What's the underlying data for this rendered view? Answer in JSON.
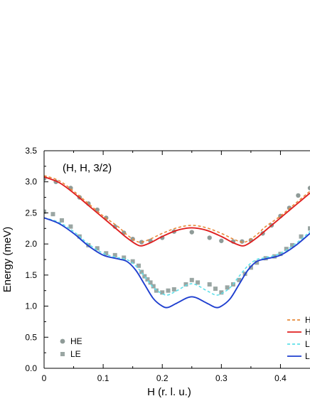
{
  "chart_data": {
    "type": "line",
    "annotation": "(H, H, 3/2)",
    "xlabel": "H (r. l. u.)",
    "ylabel": "Energy (meV)",
    "xlim": [
      0,
      0.45
    ],
    "ylim": [
      0,
      3.5
    ],
    "xticks": [
      0,
      0.1,
      0.2,
      0.3,
      0.4
    ],
    "xtick_labels": [
      "0",
      "0.1",
      "0.2",
      "0.3",
      "0.4"
    ],
    "yticks": [
      0,
      0.5,
      1.0,
      1.5,
      2.0,
      2.5,
      3.0,
      3.5
    ],
    "ytick_labels": [
      "0.0",
      "0.5",
      "1.0",
      "1.5",
      "2.0",
      "2.5",
      "3.0",
      "3.5"
    ],
    "grid": false,
    "colors": {
      "he_points": "#8f9b98",
      "le_points": "#9aa6a3",
      "he_fit_dashed": "#e8893a",
      "he_fit_solid": "#e02020",
      "le_fit_dashed": "#5fe0ea",
      "le_fit_solid": "#1f3fcf"
    },
    "point_legend": [
      {
        "label": "HE",
        "marker": "circle"
      },
      {
        "label": "LE",
        "marker": "square"
      }
    ],
    "line_legend": [
      {
        "label": "H",
        "style": "dashed",
        "color_key": "he_fit_dashed"
      },
      {
        "label": "H",
        "style": "solid",
        "color_key": "he_fit_solid"
      },
      {
        "label": "L",
        "style": "dashed",
        "color_key": "le_fit_dashed"
      },
      {
        "label": "L",
        "style": "solid",
        "color_key": "le_fit_solid"
      }
    ],
    "scatter_series": [
      {
        "name": "HE",
        "marker": "circle",
        "x": [
          0.0,
          0.02,
          0.045,
          0.06,
          0.075,
          0.09,
          0.105,
          0.12,
          0.135,
          0.15,
          0.165,
          0.18,
          0.2,
          0.22,
          0.25,
          0.28,
          0.3,
          0.32,
          0.335,
          0.35,
          0.37,
          0.385,
          0.4,
          0.415,
          0.43,
          0.45
        ],
        "y": [
          3.05,
          3.0,
          2.9,
          2.75,
          2.65,
          2.55,
          2.42,
          2.28,
          2.18,
          2.08,
          2.03,
          2.05,
          2.1,
          2.2,
          2.19,
          2.1,
          2.05,
          2.04,
          2.04,
          2.06,
          2.17,
          2.3,
          2.45,
          2.58,
          2.78,
          2.9
        ]
      },
      {
        "name": "LE",
        "marker": "square",
        "x": [
          0.0,
          0.015,
          0.03,
          0.045,
          0.06,
          0.075,
          0.09,
          0.105,
          0.12,
          0.135,
          0.15,
          0.16,
          0.165,
          0.17,
          0.175,
          0.18,
          0.185,
          0.19,
          0.2,
          0.21,
          0.22,
          0.24,
          0.25,
          0.26,
          0.28,
          0.29,
          0.3,
          0.31,
          0.32,
          0.33,
          0.34,
          0.35,
          0.36,
          0.375,
          0.39,
          0.4,
          0.41,
          0.42,
          0.435,
          0.45
        ],
        "y": [
          2.52,
          2.48,
          2.38,
          2.28,
          2.12,
          1.98,
          1.93,
          1.85,
          1.82,
          1.78,
          1.72,
          1.65,
          1.55,
          1.48,
          1.43,
          1.38,
          1.32,
          1.25,
          1.22,
          1.25,
          1.27,
          1.35,
          1.42,
          1.38,
          1.35,
          1.28,
          1.22,
          1.3,
          1.35,
          1.42,
          1.52,
          1.62,
          1.7,
          1.77,
          1.8,
          1.84,
          1.92,
          1.98,
          2.12,
          2.25
        ]
      }
    ],
    "line_series": [
      {
        "name": "H (dashed)",
        "style": "dashed",
        "color_key": "he_fit_dashed",
        "x": [
          0,
          0.025,
          0.05,
          0.075,
          0.1,
          0.125,
          0.14,
          0.155,
          0.165,
          0.18,
          0.2,
          0.225,
          0.25,
          0.275,
          0.3,
          0.32,
          0.335,
          0.345,
          0.36,
          0.375,
          0.4,
          0.425,
          0.45
        ],
        "y": [
          3.1,
          3.02,
          2.85,
          2.65,
          2.45,
          2.28,
          2.15,
          2.05,
          2.03,
          2.08,
          2.17,
          2.26,
          2.3,
          2.26,
          2.17,
          2.08,
          2.03,
          2.05,
          2.15,
          2.28,
          2.45,
          2.65,
          2.85
        ]
      },
      {
        "name": "H (solid)",
        "style": "solid",
        "color_key": "he_fit_solid",
        "x": [
          0,
          0.025,
          0.05,
          0.075,
          0.1,
          0.125,
          0.14,
          0.155,
          0.165,
          0.18,
          0.2,
          0.225,
          0.25,
          0.275,
          0.3,
          0.32,
          0.335,
          0.345,
          0.36,
          0.375,
          0.4,
          0.425,
          0.45
        ],
        "y": [
          3.08,
          2.99,
          2.82,
          2.62,
          2.42,
          2.22,
          2.1,
          2.0,
          1.97,
          2.02,
          2.12,
          2.22,
          2.26,
          2.22,
          2.12,
          2.02,
          1.97,
          2.0,
          2.1,
          2.22,
          2.42,
          2.62,
          2.82
        ]
      },
      {
        "name": "L (dashed)",
        "style": "dashed",
        "color_key": "le_fit_dashed",
        "x": [
          0,
          0.025,
          0.05,
          0.075,
          0.1,
          0.125,
          0.14,
          0.155,
          0.17,
          0.185,
          0.2,
          0.21,
          0.225,
          0.25,
          0.275,
          0.29,
          0.3,
          0.315,
          0.33,
          0.345,
          0.36,
          0.375,
          0.4,
          0.425,
          0.45
        ],
        "y": [
          2.42,
          2.35,
          2.2,
          2.0,
          1.85,
          1.78,
          1.75,
          1.65,
          1.48,
          1.3,
          1.2,
          1.18,
          1.25,
          1.36,
          1.25,
          1.18,
          1.2,
          1.3,
          1.48,
          1.65,
          1.75,
          1.78,
          1.85,
          2.0,
          2.2
        ]
      },
      {
        "name": "L (solid)",
        "style": "solid",
        "color_key": "le_fit_solid",
        "x": [
          0,
          0.025,
          0.05,
          0.075,
          0.1,
          0.125,
          0.14,
          0.155,
          0.17,
          0.185,
          0.2,
          0.21,
          0.225,
          0.25,
          0.275,
          0.29,
          0.3,
          0.315,
          0.33,
          0.345,
          0.36,
          0.375,
          0.4,
          0.425,
          0.45
        ],
        "y": [
          2.42,
          2.33,
          2.17,
          1.97,
          1.82,
          1.76,
          1.72,
          1.58,
          1.35,
          1.12,
          1.0,
          0.98,
          1.05,
          1.15,
          1.05,
          0.98,
          1.0,
          1.12,
          1.35,
          1.58,
          1.72,
          1.76,
          1.82,
          1.97,
          2.17
        ]
      }
    ]
  }
}
